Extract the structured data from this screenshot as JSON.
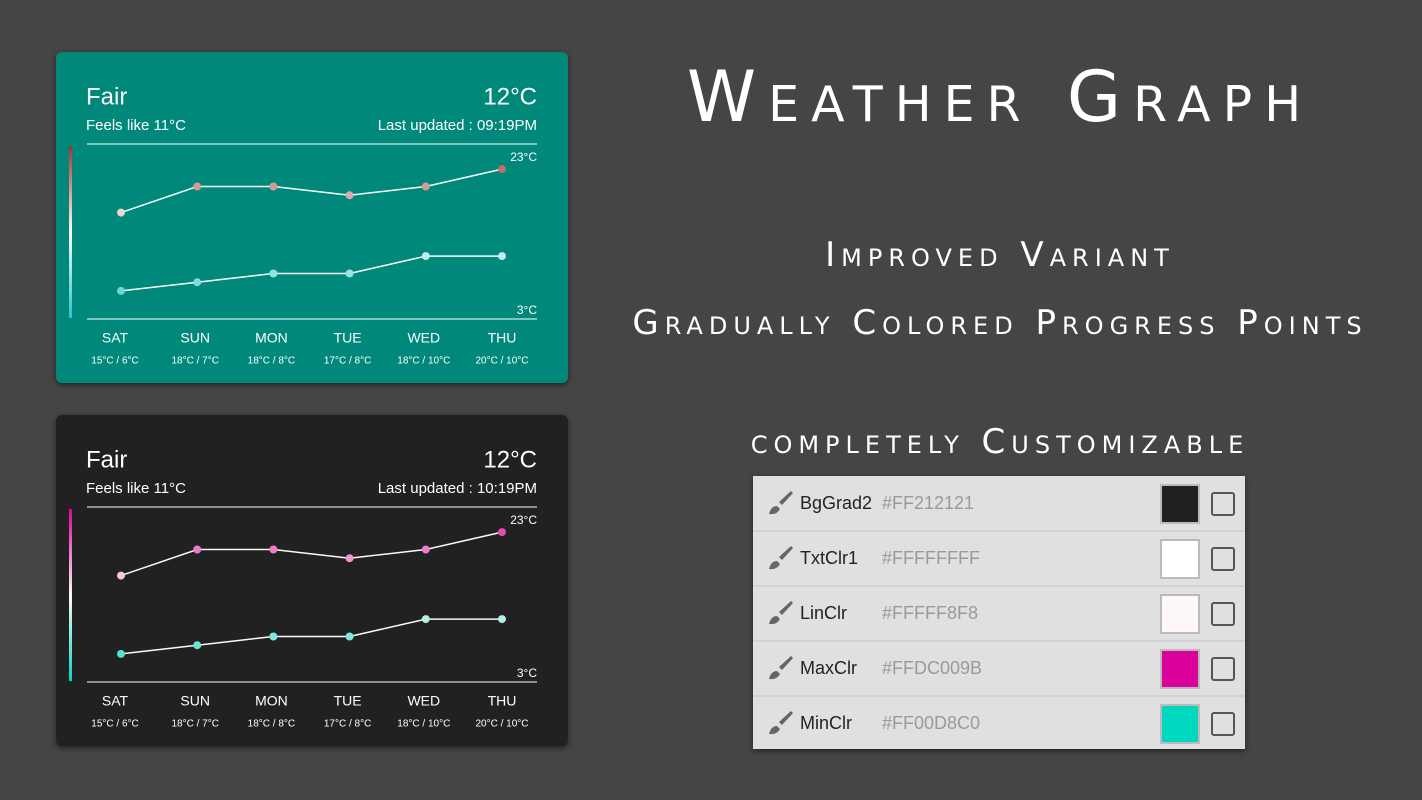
{
  "title": "Weather Graph",
  "features": [
    "Improved Variant",
    "Gradually Colored Progress Points",
    "completely Customizable"
  ],
  "widgets": [
    {
      "condition": "Fair",
      "temperature": "12°C",
      "feels_like": "Feels like 11°C",
      "last_updated": "Last updated : 09:19PM",
      "background": "#00897b",
      "max_color": "#a8302f",
      "min_color": "#2fc2cc",
      "line_color": "#ffffff",
      "chart": {
        "type": "line",
        "ylim": [
          3,
          23
        ],
        "yticks": [
          {
            "value": 23,
            "label": "23°C"
          },
          {
            "value": 3,
            "label": "3°C"
          }
        ],
        "categories": [
          "SAT",
          "SUN",
          "MON",
          "TUE",
          "WED",
          "THU"
        ],
        "category_labels": [
          "15°C / 6°C",
          "18°C / 7°C",
          "18°C / 8°C",
          "17°C / 8°C",
          "18°C / 10°C",
          "20°C / 10°C"
        ],
        "series": [
          {
            "values": [
              15,
              18,
              18,
              17,
              18,
              20
            ]
          },
          {
            "values": [
              6,
              7,
              8,
              8,
              10,
              10
            ]
          }
        ]
      }
    },
    {
      "condition": "Fair",
      "temperature": "12°C",
      "feels_like": "Feels like 11°C",
      "last_updated": "Last updated : 10:19PM",
      "background": "#212121",
      "max_color": "#dc009b",
      "min_color": "#00d8c0",
      "line_color": "#fff8f8",
      "chart": {
        "type": "line",
        "ylim": [
          3,
          23
        ],
        "yticks": [
          {
            "value": 23,
            "label": "23°C"
          },
          {
            "value": 3,
            "label": "3°C"
          }
        ],
        "categories": [
          "SAT",
          "SUN",
          "MON",
          "TUE",
          "WED",
          "THU"
        ],
        "category_labels": [
          "15°C / 6°C",
          "18°C / 7°C",
          "18°C / 8°C",
          "17°C / 8°C",
          "18°C / 10°C",
          "20°C / 10°C"
        ],
        "series": [
          {
            "values": [
              15,
              18,
              18,
              17,
              18,
              20
            ]
          },
          {
            "values": [
              6,
              7,
              8,
              8,
              10,
              10
            ]
          }
        ]
      }
    }
  ],
  "settings": [
    {
      "name": "BgGrad2",
      "value": "#FF212121"
    },
    {
      "name": "TxtClr1",
      "value": "#FFFFFFFF"
    },
    {
      "name": "LinClr",
      "value": "#FFFFF8F8"
    },
    {
      "name": "MaxClr",
      "value": "#FFDC009B"
    },
    {
      "name": "MinClr",
      "value": "#FF00D8C0"
    }
  ]
}
